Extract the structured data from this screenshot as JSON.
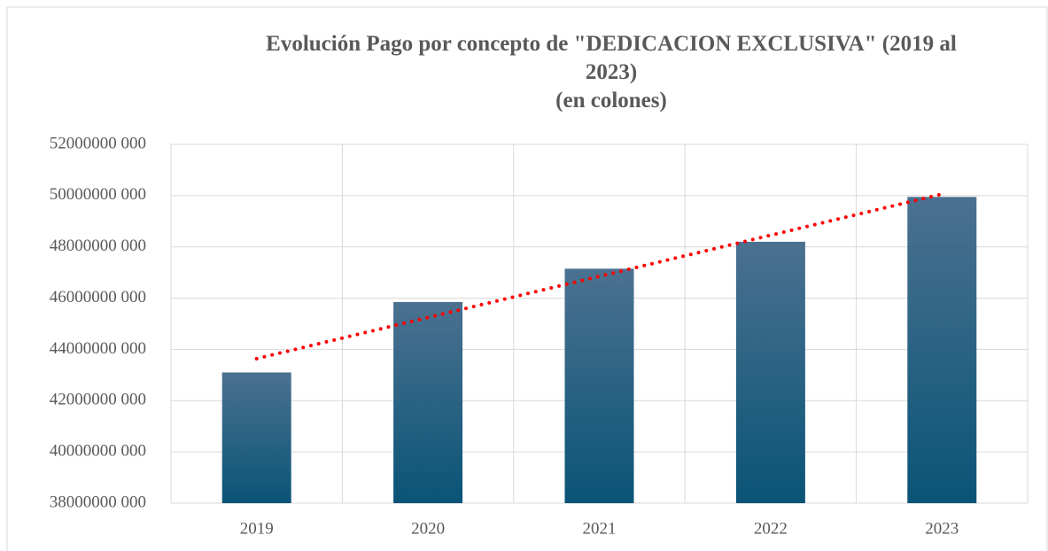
{
  "chart_data": {
    "type": "bar",
    "title": "Evolución Pago por concepto de \"DEDICACION  EXCLUSIVA\" (2019 al 2023)",
    "subtitle": "(en colones)",
    "categories": [
      "2019",
      "2020",
      "2021",
      "2022",
      "2023"
    ],
    "values": [
      43100000000,
      45850000000,
      47150000000,
      48200000000,
      49950000000
    ],
    "color_top": "#4b7190",
    "color_bottom": "#0a5477",
    "trendline": {
      "type": "linear",
      "color": "#ff0000"
    },
    "ylim": [
      38000000000,
      52000000000
    ],
    "yticks": [
      {
        "value": 38000000000,
        "label": "38000000 000"
      },
      {
        "value": 40000000000,
        "label": "40000000 000"
      },
      {
        "value": 42000000000,
        "label": "42000000 000"
      },
      {
        "value": 44000000000,
        "label": "44000000 000"
      },
      {
        "value": 46000000000,
        "label": "46000000 000"
      },
      {
        "value": 48000000000,
        "label": "48000000 000"
      },
      {
        "value": 50000000000,
        "label": "50000000 000"
      },
      {
        "value": 52000000000,
        "label": "52000000 000"
      }
    ],
    "grid": true
  }
}
